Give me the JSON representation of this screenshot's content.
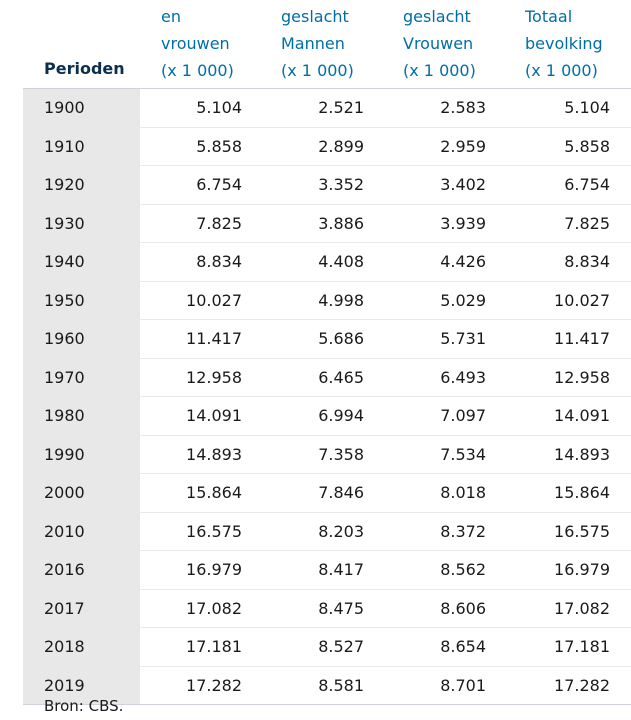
{
  "table": {
    "headers": [
      {
        "lines": [
          "Perioden"
        ]
      },
      {
        "lines": [
          "en",
          "vrouwen",
          "(x 1 000)"
        ]
      },
      {
        "lines": [
          "geslacht",
          "Mannen",
          "(x 1 000)"
        ]
      },
      {
        "lines": [
          "geslacht",
          "Vrouwen",
          "(x 1 000)"
        ]
      },
      {
        "lines": [
          "Totaal",
          "bevolking",
          "(x 1 000)"
        ]
      }
    ],
    "rows": [
      [
        "1900",
        "5.104",
        "2.521",
        "2.583",
        "5.104"
      ],
      [
        "1910",
        "5.858",
        "2.899",
        "2.959",
        "5.858"
      ],
      [
        "1920",
        "6.754",
        "3.352",
        "3.402",
        "6.754"
      ],
      [
        "1930",
        "7.825",
        "3.886",
        "3.939",
        "7.825"
      ],
      [
        "1940",
        "8.834",
        "4.408",
        "4.426",
        "8.834"
      ],
      [
        "1950",
        "10.027",
        "4.998",
        "5.029",
        "10.027"
      ],
      [
        "1960",
        "11.417",
        "5.686",
        "5.731",
        "11.417"
      ],
      [
        "1970",
        "12.958",
        "6.465",
        "6.493",
        "12.958"
      ],
      [
        "1980",
        "14.091",
        "6.994",
        "7.097",
        "14.091"
      ],
      [
        "1990",
        "14.893",
        "7.358",
        "7.534",
        "14.893"
      ],
      [
        "2000",
        "15.864",
        "7.846",
        "8.018",
        "15.864"
      ],
      [
        "2010",
        "16.575",
        "8.203",
        "8.372",
        "16.575"
      ],
      [
        "2016",
        "16.979",
        "8.417",
        "8.562",
        "16.979"
      ],
      [
        "2017",
        "17.082",
        "8.475",
        "8.606",
        "17.082"
      ],
      [
        "2018",
        "17.181",
        "8.527",
        "8.654",
        "17.181"
      ],
      [
        "2019",
        "17.282",
        "8.581",
        "8.701",
        "17.282"
      ]
    ]
  },
  "footer": {
    "source": "Bron: CBS."
  },
  "colors": {
    "header_text": "#006ea6",
    "header_first": "#0d2f4f",
    "period_bg": "#e8e8e8"
  }
}
